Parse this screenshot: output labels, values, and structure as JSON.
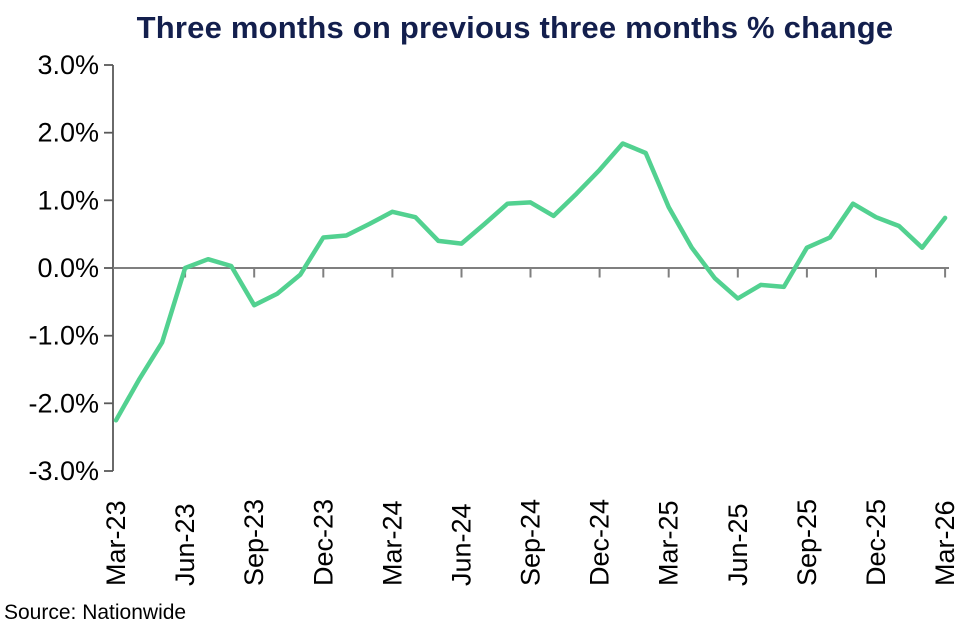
{
  "title": "Three months on previous three months % change",
  "source": {
    "label": "Source: Nationwide"
  },
  "colors": {
    "title": "#131F4D",
    "line": "#52D190",
    "axis": "#595959",
    "zero_line": "#7F7F7F",
    "tick_text": "#000000",
    "background": "#FFFFFF"
  },
  "chart_data": {
    "type": "line",
    "title": "Three months on previous three months % change",
    "xlabel": "",
    "ylabel": "",
    "ylim": [
      -3.0,
      3.0
    ],
    "grid": false,
    "legend": "none",
    "y_ticks": [
      3.0,
      2.0,
      1.0,
      0.0,
      -1.0,
      -2.0,
      -3.0
    ],
    "y_tick_labels": [
      "3.0%",
      "2.0%",
      "1.0%",
      "0.0%",
      "-1.0%",
      "-2.0%",
      "-3.0%"
    ],
    "x_tick_labels": [
      "Mar-23",
      "Jun-23",
      "Sep-23",
      "Dec-23",
      "Mar-24",
      "Jun-24",
      "Sep-24",
      "Dec-24",
      "Mar-25",
      "Jun-25",
      "Sep-25",
      "Dec-25",
      "Mar-26"
    ],
    "x": [
      "Mar-23",
      "Apr-23",
      "May-23",
      "Jun-23",
      "Jul-23",
      "Aug-23",
      "Sep-23",
      "Oct-23",
      "Nov-23",
      "Dec-23",
      "Jan-24",
      "Feb-24",
      "Mar-24",
      "Apr-24",
      "May-24",
      "Jun-24",
      "Jul-24",
      "Aug-24",
      "Sep-24",
      "Oct-24",
      "Nov-24",
      "Dec-24",
      "Jan-25",
      "Feb-25",
      "Mar-25",
      "Apr-25",
      "May-25",
      "Jun-25",
      "Jul-25",
      "Aug-25",
      "Sep-25",
      "Oct-25",
      "Nov-25",
      "Dec-25",
      "Jan-26",
      "Feb-26",
      "Mar-26"
    ],
    "values": [
      -2.25,
      -1.65,
      -1.1,
      0.0,
      0.13,
      0.03,
      -0.55,
      -0.38,
      -0.1,
      0.45,
      0.48,
      0.65,
      0.83,
      0.75,
      0.4,
      0.36,
      0.65,
      0.95,
      0.97,
      0.77,
      1.1,
      1.45,
      1.84,
      1.7,
      0.9,
      0.3,
      -0.15,
      -0.45,
      -0.25,
      -0.28,
      0.3,
      0.45,
      0.95,
      0.75,
      0.62,
      0.3,
      0.74
    ],
    "unit": "%"
  }
}
